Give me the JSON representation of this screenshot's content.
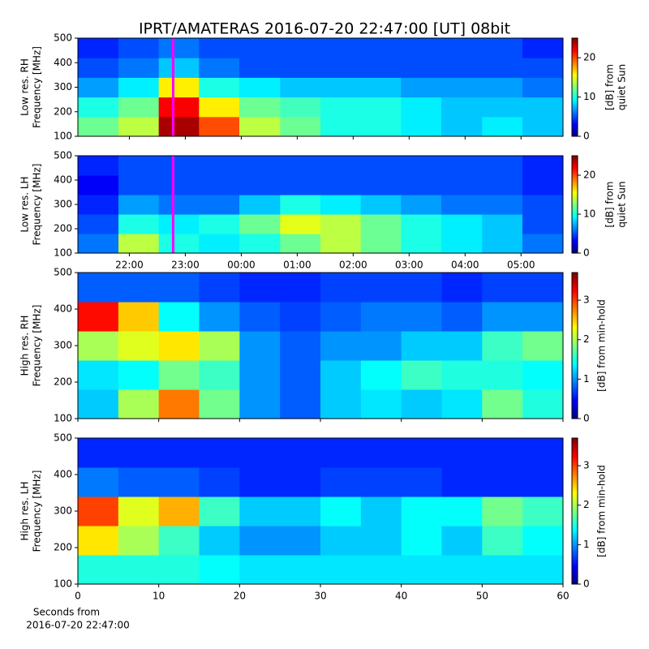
{
  "title": "IPRT/AMATERAS 2016-07-20 22:47:00 [UT]   08bit",
  "chart_data": [
    {
      "type": "heatmap",
      "ylabel": [
        "Low res. RH",
        "Frequency [MHz]"
      ],
      "colorbar_label": [
        "[dB] from",
        "quiet Sun"
      ],
      "xlim": [
        21.08,
        29.75
      ],
      "ylim": [
        100,
        500
      ],
      "yticks": [
        100,
        200,
        300,
        400,
        500
      ],
      "clim": [
        0,
        25
      ],
      "cticks": [
        0,
        10,
        20
      ],
      "colormap": "jet",
      "marker": {
        "x": 22.783,
        "color": "#ff00ff"
      },
      "x": [
        21.44,
        22.17,
        22.89,
        23.61,
        24.33,
        25.06,
        25.78,
        26.5,
        27.22,
        27.94,
        28.67,
        29.39
      ],
      "y": [
        140,
        220,
        300,
        380,
        460
      ],
      "values": [
        [
          12,
          14,
          24,
          20,
          14,
          12,
          10,
          10,
          9,
          8,
          9,
          8
        ],
        [
          10,
          12,
          22,
          16,
          12,
          11,
          10,
          10,
          9,
          8,
          8,
          8
        ],
        [
          7,
          9,
          16,
          10,
          9,
          8,
          8,
          8,
          7,
          7,
          7,
          6
        ],
        [
          5,
          6,
          8,
          6,
          5,
          5,
          5,
          5,
          5,
          5,
          5,
          5
        ],
        [
          4,
          5,
          6,
          5,
          5,
          5,
          5,
          5,
          5,
          5,
          5,
          4
        ]
      ]
    },
    {
      "type": "heatmap",
      "ylabel": [
        "Low res. LH",
        "Frequency [MHz]"
      ],
      "colorbar_label": [
        "[dB] from",
        "quiet Sun"
      ],
      "xlim": [
        21.08,
        29.75
      ],
      "ylim": [
        100,
        500
      ],
      "yticks": [
        100,
        200,
        300,
        400,
        500
      ],
      "xticks": [
        {
          "value": 22,
          "label": "22:00"
        },
        {
          "value": 23,
          "label": "23:00"
        },
        {
          "value": 24,
          "label": "00:00"
        },
        {
          "value": 25,
          "label": "01:00"
        },
        {
          "value": 26,
          "label": "02:00"
        },
        {
          "value": 27,
          "label": "03:00"
        },
        {
          "value": 28,
          "label": "04:00"
        },
        {
          "value": 29,
          "label": "05:00"
        }
      ],
      "clim": [
        0,
        25
      ],
      "cticks": [
        0,
        10,
        20
      ],
      "colormap": "jet",
      "marker": {
        "x": 22.783,
        "color": "#ff00ff"
      },
      "x": [
        21.44,
        22.17,
        22.89,
        23.61,
        24.33,
        25.06,
        25.78,
        26.5,
        27.22,
        27.94,
        28.67,
        29.39
      ],
      "y": [
        140,
        220,
        300,
        380,
        460
      ],
      "values": [
        [
          6,
          14,
          10,
          9,
          10,
          12,
          14,
          12,
          10,
          9,
          8,
          6
        ],
        [
          5,
          10,
          9,
          10,
          12,
          15,
          14,
          12,
          10,
          9,
          8,
          5
        ],
        [
          4,
          7,
          6,
          6,
          8,
          10,
          9,
          8,
          7,
          6,
          6,
          5
        ],
        [
          3,
          5,
          5,
          5,
          5,
          5,
          5,
          5,
          5,
          5,
          5,
          4
        ],
        [
          4,
          5,
          5,
          5,
          5,
          5,
          5,
          5,
          5,
          5,
          5,
          4
        ]
      ]
    },
    {
      "type": "heatmap",
      "ylabel": [
        "High res. RH",
        "Frequency [MHz]"
      ],
      "colorbar_label": [
        "[dB] from min-hold"
      ],
      "xlim": [
        0,
        60
      ],
      "ylim": [
        100,
        500
      ],
      "yticks": [
        100,
        200,
        300,
        400,
        500
      ],
      "clim": [
        0,
        3.7
      ],
      "cticks": [
        0,
        1,
        2,
        3
      ],
      "colormap": "jet",
      "x": [
        2.5,
        7.5,
        12.5,
        17.5,
        22.5,
        27.5,
        32.5,
        37.5,
        42.5,
        47.5,
        52.5,
        57.5
      ],
      "y": [
        140,
        220,
        300,
        380,
        460
      ],
      "values": [
        [
          1.2,
          2.0,
          2.8,
          1.8,
          1.0,
          0.8,
          1.2,
          1.3,
          1.2,
          1.3,
          1.8,
          1.5
        ],
        [
          1.3,
          1.4,
          1.8,
          1.6,
          1.0,
          0.8,
          1.2,
          1.4,
          1.6,
          1.5,
          1.5,
          1.4
        ],
        [
          2.0,
          2.2,
          2.4,
          2.0,
          1.0,
          0.8,
          1.0,
          1.0,
          1.2,
          1.2,
          1.6,
          1.8
        ],
        [
          3.2,
          2.5,
          1.4,
          1.0,
          0.8,
          0.7,
          0.8,
          0.9,
          0.9,
          0.8,
          1.0,
          1.0
        ],
        [
          0.8,
          0.8,
          0.8,
          0.7,
          0.6,
          0.6,
          0.7,
          0.7,
          0.7,
          0.6,
          0.7,
          0.7
        ]
      ]
    },
    {
      "type": "heatmap",
      "ylabel": [
        "High res. LH",
        "Frequency [MHz]"
      ],
      "colorbar_label": [
        "[dB] from min-hold"
      ],
      "xlabel": [
        "Seconds from",
        "2016-07-20 22:47:00"
      ],
      "xlim": [
        0,
        60
      ],
      "ylim": [
        100,
        500
      ],
      "yticks": [
        100,
        200,
        300,
        400,
        500
      ],
      "xticks": [
        0,
        10,
        20,
        30,
        40,
        50,
        60
      ],
      "clim": [
        0,
        3.7
      ],
      "cticks": [
        0,
        1,
        2,
        3
      ],
      "colormap": "jet",
      "x": [
        2.5,
        7.5,
        12.5,
        17.5,
        22.5,
        27.5,
        32.5,
        37.5,
        42.5,
        47.5,
        52.5,
        57.5
      ],
      "y": [
        140,
        220,
        300,
        380,
        460
      ],
      "values": [
        [
          1.5,
          1.5,
          1.5,
          1.4,
          1.3,
          1.3,
          1.3,
          1.3,
          1.3,
          1.3,
          1.3,
          1.3
        ],
        [
          2.4,
          2.0,
          1.6,
          1.2,
          1.0,
          1.0,
          1.2,
          1.2,
          1.4,
          1.2,
          1.6,
          1.4
        ],
        [
          3.0,
          2.2,
          2.6,
          1.6,
          1.2,
          1.2,
          1.4,
          1.2,
          1.4,
          1.4,
          1.8,
          1.6
        ],
        [
          0.9,
          0.8,
          0.8,
          0.7,
          0.6,
          0.6,
          0.7,
          0.7,
          0.7,
          0.6,
          0.6,
          0.6
        ],
        [
          0.6,
          0.6,
          0.6,
          0.6,
          0.6,
          0.6,
          0.6,
          0.6,
          0.6,
          0.6,
          0.6,
          0.6
        ]
      ]
    }
  ]
}
